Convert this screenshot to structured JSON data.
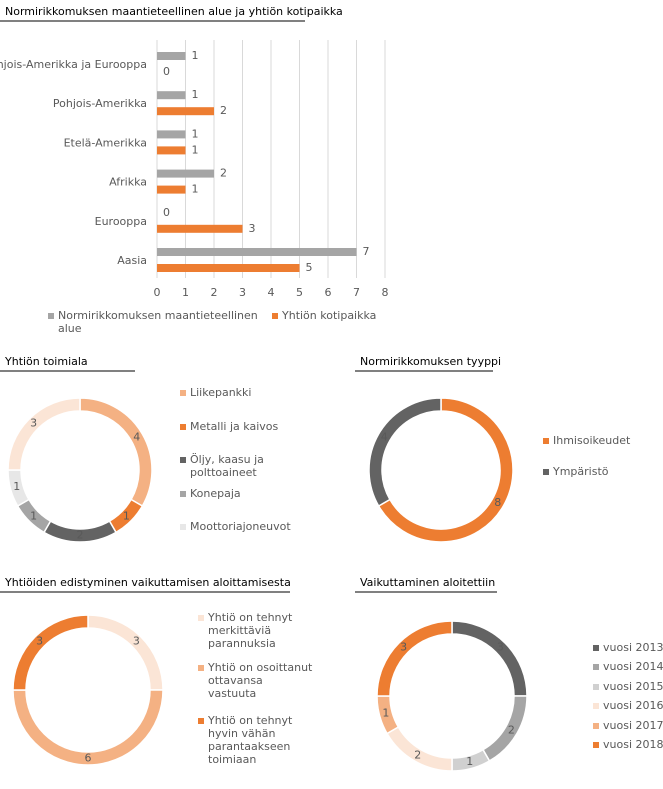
{
  "chart_data": [
    {
      "type": "bar",
      "orientation": "horizontal",
      "title": "Normirikkomuksen maantieteellinen alue ja yhtiön kotipaikka",
      "categories": [
        "Pohjois-Amerikka ja Eurooppa",
        "Pohjois-Amerikka",
        "Etelä-Amerikka",
        "Afrikka",
        "Eurooppa",
        "Aasia"
      ],
      "series": [
        {
          "name": "Normirikkomuksen maantieteellinen alue",
          "color": "#a5a5a5",
          "values": [
            1,
            1,
            1,
            2,
            0,
            7
          ]
        },
        {
          "name": "Yhtiön kotipaikka",
          "color": "#ed7d31",
          "values": [
            0,
            2,
            1,
            1,
            3,
            5
          ]
        }
      ],
      "xlim": [
        0,
        8
      ],
      "xticks": [
        0,
        1,
        2,
        3,
        4,
        5,
        6,
        7,
        8
      ],
      "grid": true,
      "legend": "bottom"
    },
    {
      "type": "donut",
      "title": "Yhtiön toimiala",
      "categories": [
        "Liikepankki",
        "Metalli ja kaivos",
        "Öljy, kaasu ja polttoaineet",
        "Konepaja",
        "Moottoriajoneuvot",
        null
      ],
      "values": [
        4,
        1,
        2,
        1,
        1,
        3
      ],
      "colors": [
        "#f4b183",
        "#ed7d31",
        "#636363",
        "#a5a5a5",
        "#e7e7e7",
        "#fbe5d6"
      ],
      "legend": "right"
    },
    {
      "type": "donut",
      "title": "Normirikkomuksen tyyppi",
      "categories": [
        "Ihmisoikeudet",
        "Ympäristö"
      ],
      "values": [
        8,
        4
      ],
      "colors": [
        "#ed7d31",
        "#636363"
      ],
      "legend": "right"
    },
    {
      "type": "donut",
      "title": "Yhtiöiden edistyminen vaikuttamisen aloittamisesta",
      "categories": [
        "Yhtiö on tehnyt merkittäviä parannuksia",
        "Yhtiö on osoittanut ottavansa vastuuta",
        "Yhtiö on tehnyt hyvin vähän parantaakseen toimiaan"
      ],
      "values": [
        3,
        6,
        3
      ],
      "colors": [
        "#fbe5d6",
        "#f4b183",
        "#ed7d31"
      ],
      "legend": "right"
    },
    {
      "type": "donut",
      "title": "Vaikuttaminen aloitettiin",
      "categories": [
        "vuosi 2013",
        "vuosi 2014",
        "vuosi 2015",
        "vuosi 2016",
        "vuosi 2017",
        "vuosi 2018"
      ],
      "values": [
        3,
        2,
        1,
        2,
        1,
        3
      ],
      "colors": [
        "#636363",
        "#a5a5a5",
        "#d0d0d0",
        "#fbe5d6",
        "#f4b183",
        "#ed7d31"
      ],
      "legend": "right"
    }
  ]
}
